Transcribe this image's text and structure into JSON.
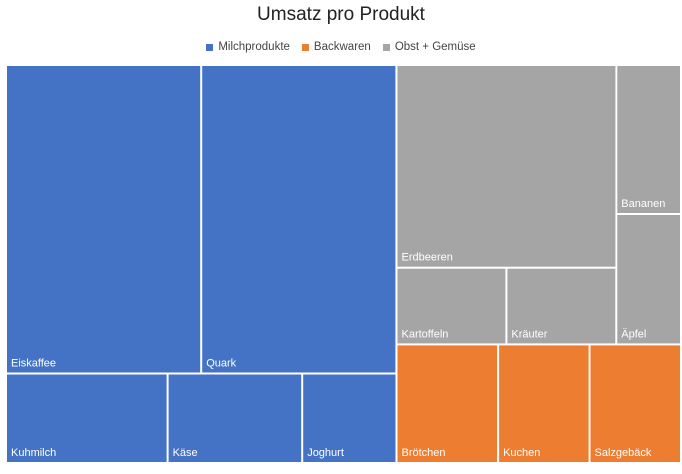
{
  "chart_data": {
    "type": "treemap",
    "title": "Umsatz pro Produkt",
    "legend_position": "top",
    "label_color": "#ffffff",
    "groups": [
      {
        "name": "Milchprodukte",
        "color": "#4472C4",
        "items": [
          {
            "label": "Eiskaffee",
            "value": 50
          },
          {
            "label": "Quark",
            "value": 50
          },
          {
            "label": "Kuhmilch",
            "value": 12
          },
          {
            "label": "Käse",
            "value": 10
          },
          {
            "label": "Joghurt",
            "value": 7
          }
        ]
      },
      {
        "name": "Backwaren",
        "color": "#ED7D31",
        "items": [
          {
            "label": "Brötchen",
            "value": 10
          },
          {
            "label": "Kuchen",
            "value": 9
          },
          {
            "label": "Salzgebäck",
            "value": 9
          }
        ]
      },
      {
        "name": "Obst + Gemüse",
        "color": "#A5A5A5",
        "items": [
          {
            "label": "Erdbeeren",
            "value": 37
          },
          {
            "label": "Kartoffeln",
            "value": 7
          },
          {
            "label": "Kräuter",
            "value": 7
          },
          {
            "label": "Bananen",
            "value": 8
          },
          {
            "label": "Äpfel",
            "value": 7
          }
        ]
      }
    ]
  }
}
